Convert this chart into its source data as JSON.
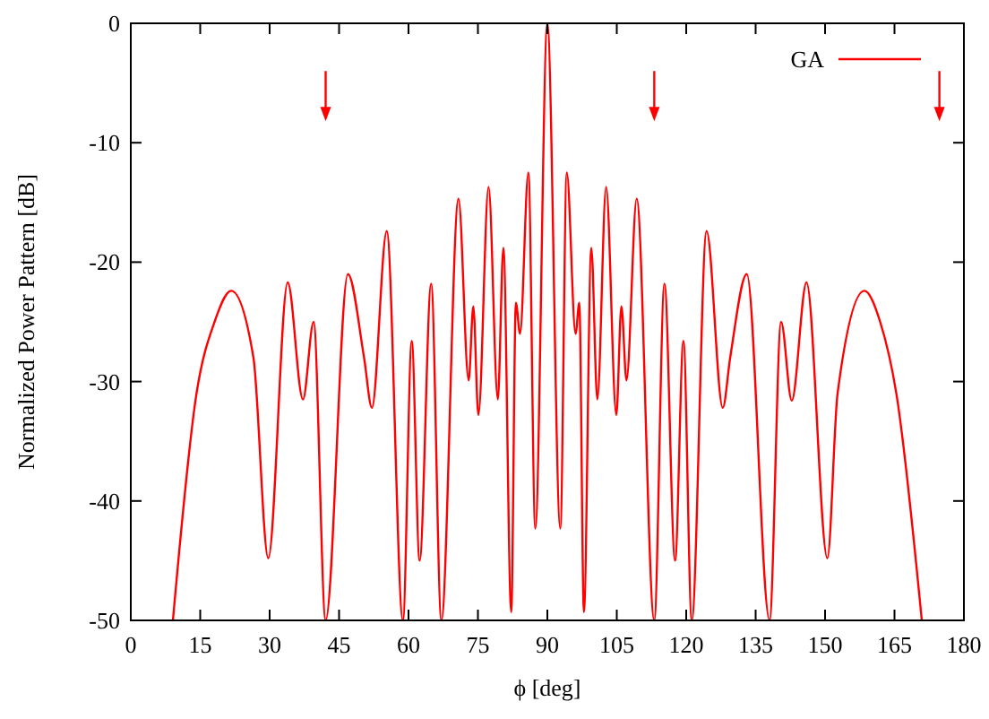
{
  "chart_data": {
    "type": "line",
    "xlabel": "ϕ [deg]",
    "ylabel": "Normalized Power Pattern [dB]",
    "xlim": [
      0,
      180
    ],
    "ylim": [
      -50,
      0
    ],
    "xticks": [
      0,
      15,
      30,
      45,
      60,
      75,
      90,
      105,
      120,
      135,
      150,
      165,
      180
    ],
    "yticks": [
      -50,
      -40,
      -30,
      -20,
      -10,
      0
    ],
    "grid": false,
    "legend": "top right",
    "line_style": "solid",
    "marker": "none",
    "series": [
      {
        "name": "GA",
        "color": "#ff0000",
        "x": [
          9.1,
          14.2,
          18.1,
          21.7,
          26.5,
          29.7,
          33.9,
          37.2,
          39.5,
          42.1,
          46.9,
          50.4,
          52.1,
          55.3,
          58.8,
          60.7,
          62.4,
          64.9,
          67.1,
          70.8,
          73.0,
          74.0,
          75.1,
          77.3,
          79.3,
          80.5,
          82.2,
          83.2,
          84.1,
          85.9,
          87.4,
          90,
          92.8,
          94.2,
          96.1,
          96.9,
          97.9,
          99.5,
          100.8,
          102.7,
          104.9,
          106.0,
          107.1,
          109.3,
          113.1,
          115.3,
          117.6,
          119.4,
          121.2,
          124.4,
          127.9,
          129.5,
          133.1,
          138.0,
          140.5,
          142.8,
          146.0,
          150.5,
          152.7,
          158.5,
          161.9,
          165.4,
          170.9
        ],
        "values": [
          -50,
          -31.0,
          -25.0,
          -22.4,
          -28.0,
          -44.8,
          -21.7,
          -31.5,
          -25.0,
          -50,
          -21.0,
          -28.0,
          -32.2,
          -17.4,
          -50,
          -26.6,
          -45.0,
          -21.8,
          -50,
          -14.7,
          -29.9,
          -23.7,
          -32.8,
          -13.7,
          -31.5,
          -18.8,
          -49.3,
          -23.4,
          -26.0,
          -12.5,
          -42.3,
          0,
          -42.3,
          -12.5,
          -26.0,
          -23.4,
          -49.3,
          -18.8,
          -31.5,
          -13.7,
          -32.8,
          -23.7,
          -29.9,
          -14.7,
          -50,
          -21.8,
          -45.0,
          -26.6,
          -50,
          -17.4,
          -32.2,
          -28.0,
          -21.0,
          -50,
          -25.0,
          -31.6,
          -21.7,
          -44.8,
          -31.0,
          -22.4,
          -25.0,
          -31.0,
          -50
        ]
      },
      {
        "type": "scatter",
        "color": "#ff0000",
        "marker": "triangle",
        "x": [
          42.1,
          113.1,
          174.7
        ],
        "values": [
          -7.6,
          -7.6,
          -7.6
        ]
      }
    ]
  }
}
